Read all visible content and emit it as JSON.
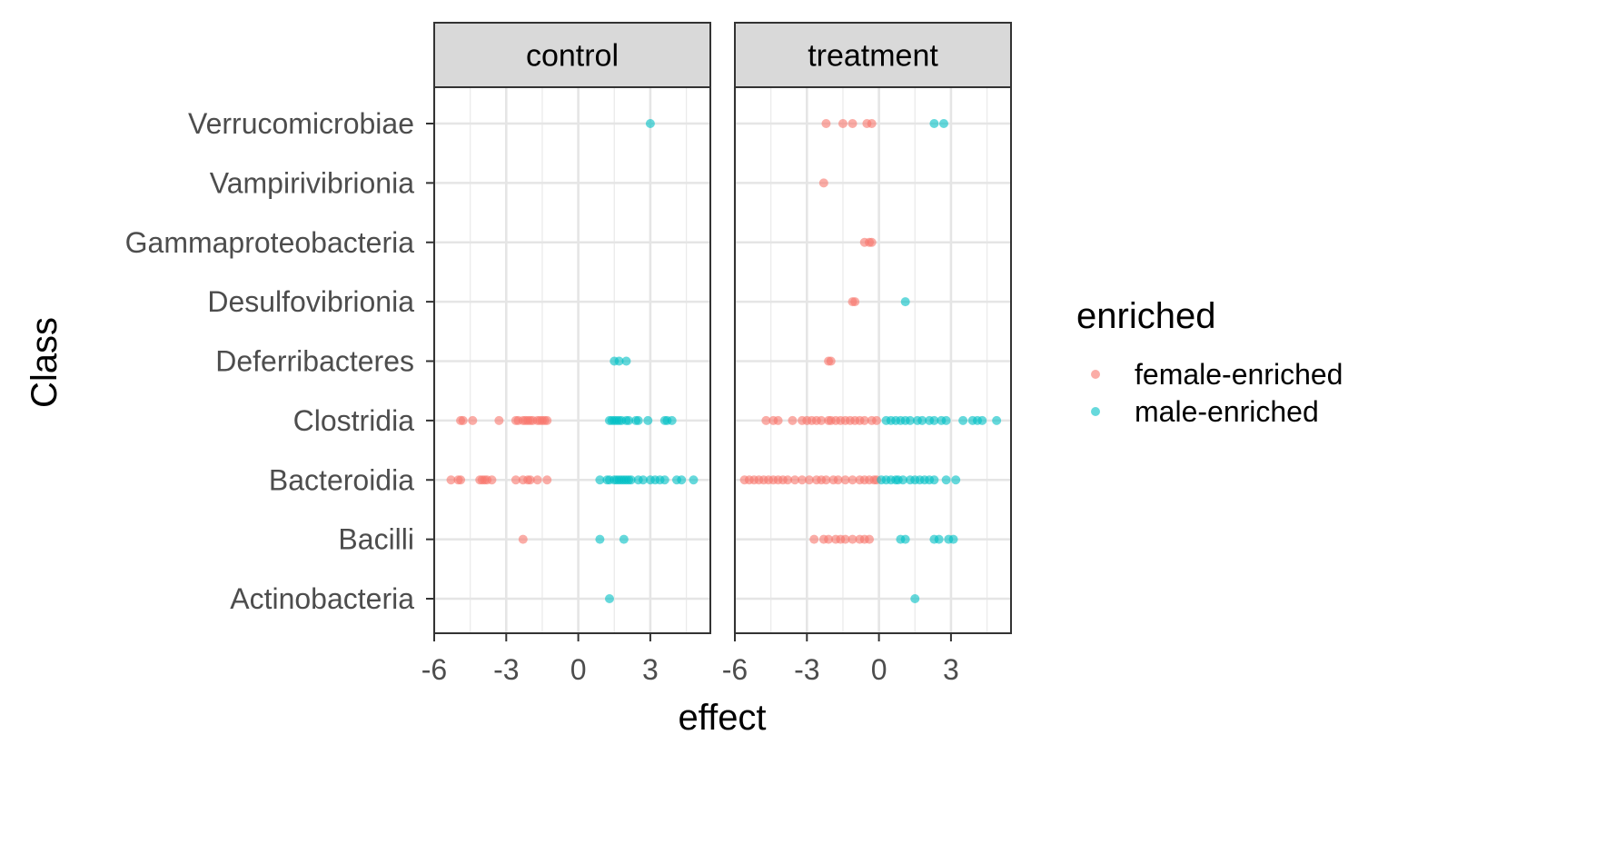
{
  "chart_data": {
    "type": "scatter",
    "facets": [
      "control",
      "treatment"
    ],
    "xlabel": "effect",
    "ylabel": "Class",
    "xlim": [
      -6,
      5.5
    ],
    "x_ticks": [
      -6,
      -3,
      0,
      3
    ],
    "x_tick_labels": [
      "-6",
      "-3",
      "0",
      "3"
    ],
    "categories": [
      "Actinobacteria",
      "Bacilli",
      "Bacteroidia",
      "Clostridia",
      "Deferribacteres",
      "Desulfovibrionia",
      "Gammaproteobacteria",
      "Vampirivibrionia",
      "Verrucomicrobiae"
    ],
    "grid": true,
    "legend": {
      "title": "enriched",
      "position": "right",
      "entries": [
        {
          "label": "female-enriched",
          "color": "#F8766D"
        },
        {
          "label": "male-enriched",
          "color": "#00BFC4"
        }
      ]
    },
    "series": [
      {
        "name": "female-enriched",
        "color": "#F8766D",
        "points": {
          "control": {
            "Clostridia": [
              -4.9,
              -4.8,
              -4.4,
              -3.3,
              -2.6,
              -2.5,
              -2.3,
              -2.2,
              -2.1,
              -2.0,
              -1.9,
              -1.7,
              -1.6,
              -1.5,
              -1.4,
              -1.3
            ],
            "Bacteroidia": [
              -5.3,
              -5.0,
              -4.9,
              -4.1,
              -4.0,
              -3.9,
              -3.8,
              -3.6,
              -2.6,
              -2.3,
              -2.1,
              -2.0,
              -1.7,
              -1.3
            ],
            "Bacilli": [
              -2.3
            ]
          },
          "treatment": {
            "Verrucomicrobiae": [
              -2.2,
              -1.5,
              -1.1,
              -0.5,
              -0.3
            ],
            "Vampirivibrionia": [
              -2.3
            ],
            "Gammaproteobacteria": [
              -0.6,
              -0.4,
              -0.3
            ],
            "Desulfovibrionia": [
              -1.1,
              -1.0
            ],
            "Deferribacteres": [
              -2.1,
              -2.0
            ],
            "Clostridia": [
              -4.7,
              -4.4,
              -4.2,
              -3.6,
              -3.2,
              -3.0,
              -2.8,
              -2.6,
              -2.4,
              -2.1,
              -2.0,
              -1.8,
              -1.6,
              -1.4,
              -1.2,
              -1.0,
              -0.8,
              -0.6,
              -0.3,
              -0.1
            ],
            "Bacteroidia": [
              -5.6,
              -5.4,
              -5.2,
              -5.0,
              -4.8,
              -4.6,
              -4.4,
              -4.2,
              -4.0,
              -3.8,
              -3.5,
              -3.2,
              -2.9,
              -2.6,
              -2.4,
              -2.2,
              -1.9,
              -1.7,
              -1.4,
              -1.1,
              -0.8,
              -0.6,
              -0.4,
              -0.2,
              -0.1
            ],
            "Bacilli": [
              -2.7,
              -2.3,
              -2.1,
              -1.8,
              -1.6,
              -1.4,
              -1.1,
              -0.8,
              -0.6,
              -0.4
            ]
          }
        }
      },
      {
        "name": "male-enriched",
        "color": "#00BFC4",
        "points": {
          "control": {
            "Verrucomicrobiae": [
              3.0
            ],
            "Deferribacteres": [
              1.5,
              1.7,
              2.0
            ],
            "Clostridia": [
              1.3,
              1.4,
              1.5,
              1.6,
              1.7,
              1.8,
              2.0,
              2.1,
              2.4,
              2.5,
              2.9,
              3.6,
              3.7,
              3.9
            ],
            "Bacteroidia": [
              0.9,
              1.2,
              1.3,
              1.5,
              1.6,
              1.7,
              1.8,
              1.9,
              2.0,
              2.1,
              2.2,
              2.5,
              2.7,
              3.0,
              3.2,
              3.4,
              3.6,
              4.1,
              4.3,
              4.8
            ],
            "Bacilli": [
              0.9,
              1.9
            ],
            "Actinobacteria": [
              1.3
            ]
          },
          "treatment": {
            "Verrucomicrobiae": [
              2.3,
              2.7
            ],
            "Desulfovibrionia": [
              1.1
            ],
            "Clostridia": [
              0.3,
              0.5,
              0.7,
              0.9,
              1.1,
              1.3,
              1.6,
              1.8,
              2.1,
              2.3,
              2.6,
              2.8,
              3.5,
              3.9,
              4.1,
              4.3,
              4.9
            ],
            "Bacteroidia": [
              0.1,
              0.3,
              0.5,
              0.7,
              0.8,
              1.0,
              1.3,
              1.5,
              1.7,
              1.9,
              2.1,
              2.3,
              2.8,
              3.2
            ],
            "Bacilli": [
              0.9,
              1.1,
              2.3,
              2.5,
              2.9,
              3.1
            ],
            "Actinobacteria": [
              1.5
            ]
          }
        }
      }
    ]
  }
}
